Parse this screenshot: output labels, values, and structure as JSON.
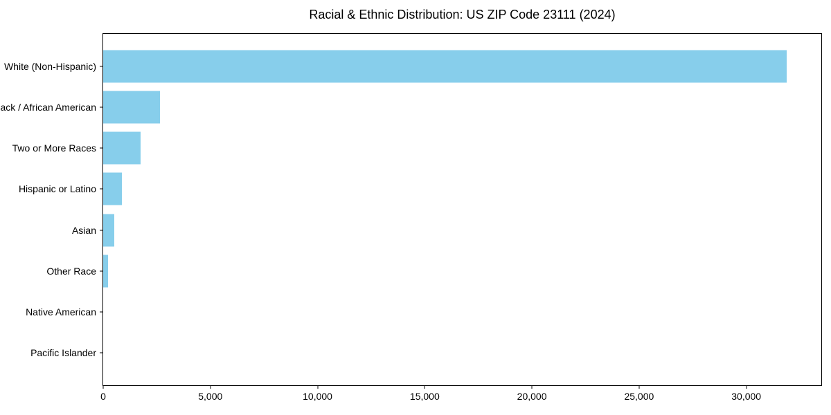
{
  "page": {
    "background_color": "#ffffff",
    "text_color": "#000000"
  },
  "chart_data": {
    "type": "bar",
    "orientation": "horizontal",
    "title": "Racial & Ethnic Distribution: US ZIP Code 23111 (2024)",
    "xlabel": "",
    "ylabel": "",
    "categories": [
      "White (Non-Hispanic)",
      "Black / African American",
      "Two or More Races",
      "Hispanic or Latino",
      "Asian",
      "Other Race",
      "Native American",
      "Pacific Islander"
    ],
    "values": [
      31900,
      2650,
      1760,
      880,
      520,
      230,
      0,
      0
    ],
    "bar_color": "#87CEEB",
    "xlim": [
      0,
      33500
    ],
    "xticks": [
      0,
      5000,
      10000,
      15000,
      20000,
      25000,
      30000
    ],
    "xtick_labels": [
      "0",
      "5,000",
      "10,000",
      "15,000",
      "20,000",
      "25,000",
      "30,000"
    ],
    "grid": false,
    "legend": "none"
  }
}
